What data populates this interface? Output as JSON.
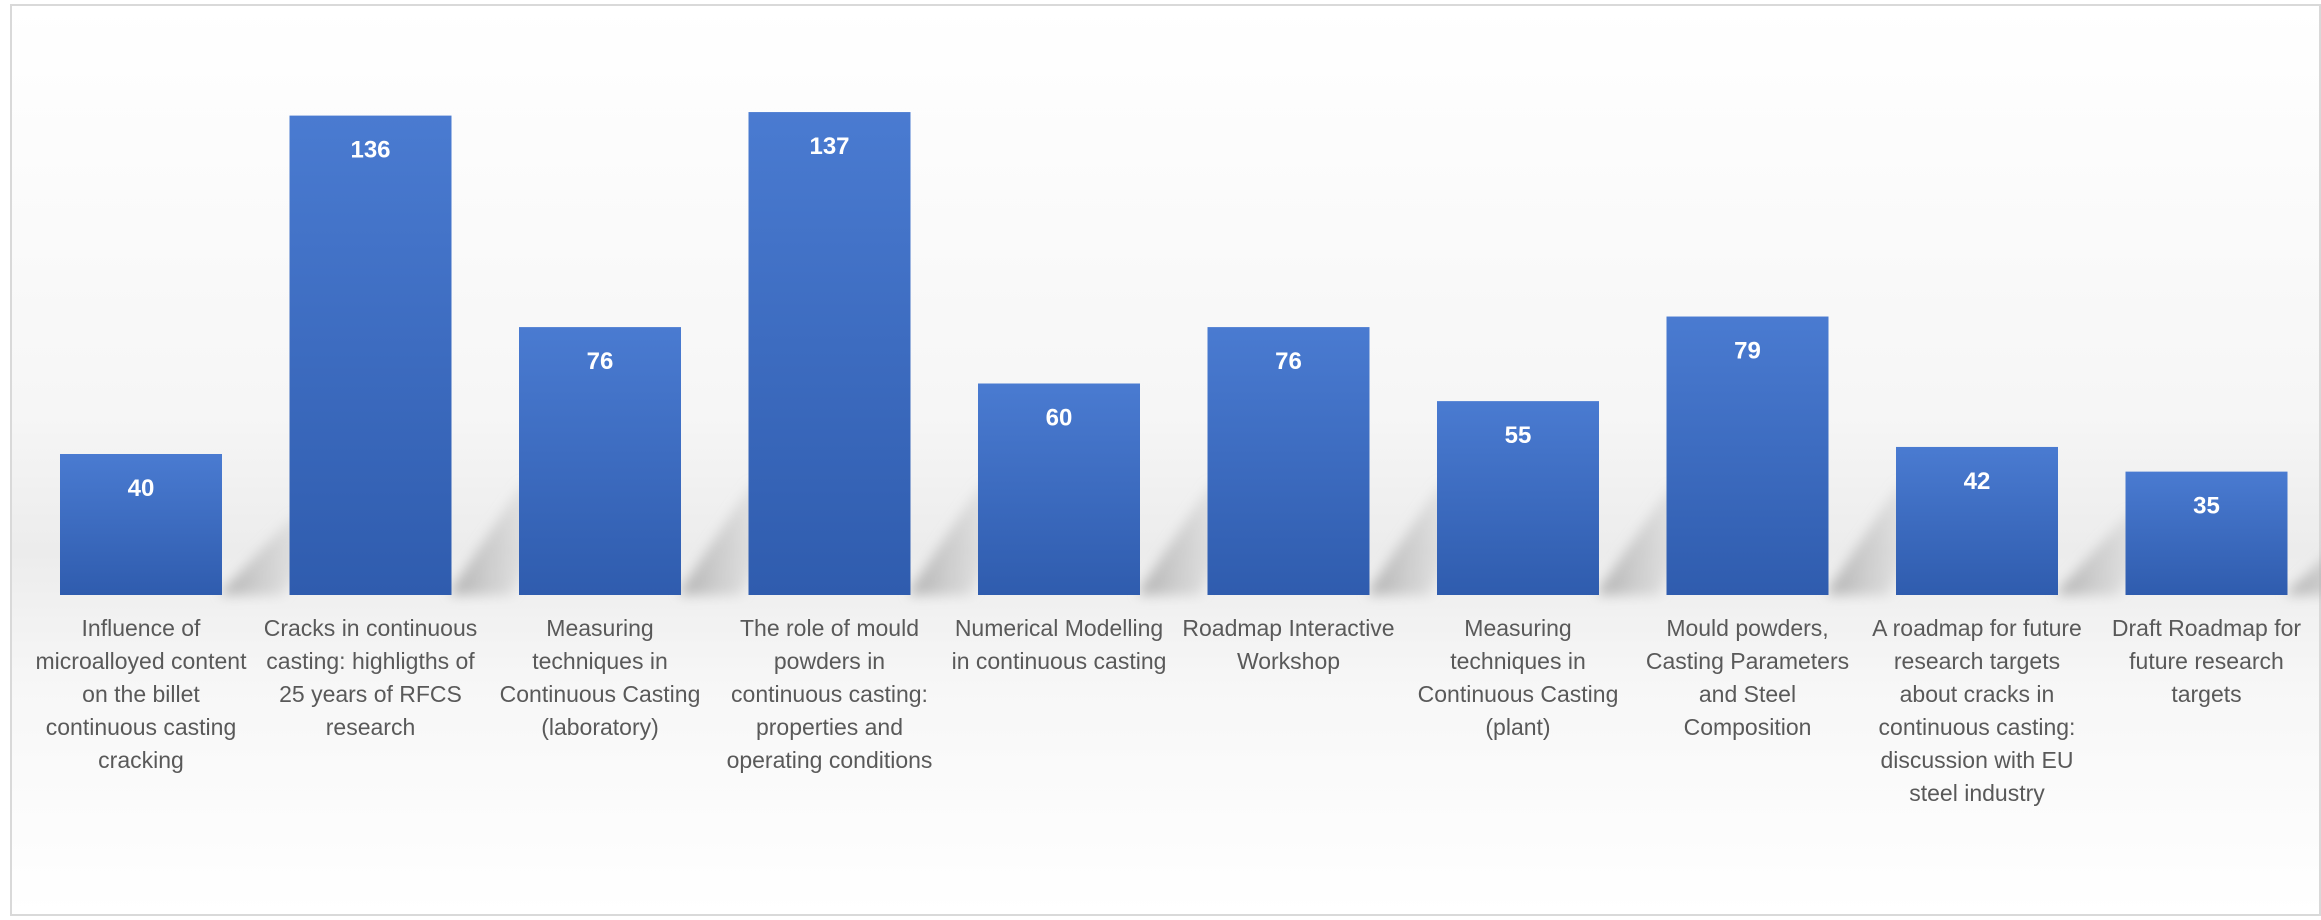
{
  "chart_data": {
    "type": "bar",
    "title": "",
    "xlabel": "",
    "ylabel": "",
    "ylim": [
      0,
      140
    ],
    "grid": false,
    "legend": "none",
    "bar_color": "#4472c4",
    "categories": [
      [
        "Influence of",
        "microalloyed content",
        "on the billet",
        "continuous casting",
        "cracking"
      ],
      [
        "Cracks in continuous",
        "casting: highligths of",
        "25 years of RFCS",
        "research"
      ],
      [
        "Measuring",
        "techniques in",
        "Continuous Casting",
        "(laboratory)"
      ],
      [
        "The role of mould",
        "powders in",
        "continuous casting:",
        "properties and",
        "operating conditions"
      ],
      [
        "Numerical Modelling",
        "in continuous casting"
      ],
      [
        "Roadmap Interactive",
        "Workshop"
      ],
      [
        "Measuring",
        "techniques in",
        "Continuous Casting",
        "(plant)"
      ],
      [
        "Mould powders,",
        "Casting Parameters",
        "and Steel",
        "Composition"
      ],
      [
        "A roadmap for future",
        "research targets",
        "about cracks in",
        "continuous casting:",
        "discussion with EU",
        "steel industry"
      ],
      [
        "Draft Roadmap for",
        "future research",
        "targets"
      ]
    ],
    "values": [
      40,
      136,
      76,
      137,
      60,
      76,
      55,
      79,
      42,
      35
    ]
  }
}
